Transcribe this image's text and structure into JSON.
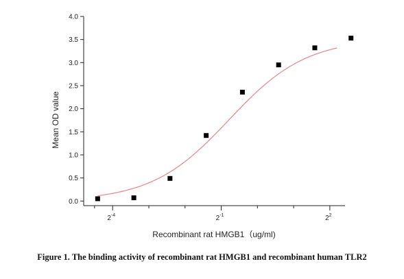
{
  "chart_data": {
    "type": "scatter",
    "title": "",
    "xlabel": "Recombinant rat HMGB1（ug/ml)",
    "ylabel": "Mean OD value",
    "x_scale": "log2",
    "xlim": [
      0.0359,
      5.35
    ],
    "ylim": [
      -0.1,
      4.0
    ],
    "y_ticks": [
      0.0,
      0.5,
      1.0,
      1.5,
      2.0,
      2.5,
      3.0,
      3.5,
      4.0
    ],
    "y_tick_labels": [
      "0.0",
      "0.5",
      "1.0",
      "1.5",
      "2.0",
      "2.5",
      "3.0",
      "3.5",
      "4.0"
    ],
    "x_ticks": [
      0.0625,
      0.5,
      4
    ],
    "x_tick_labels": [
      {
        "base": "2",
        "exp": "-4"
      },
      {
        "base": "2",
        "exp": "-1"
      },
      {
        "base": "2",
        "exp": "2"
      }
    ],
    "x_minor_ticks": [
      0.0442,
      0.125,
      0.25,
      1,
      2
    ],
    "grid": false,
    "marker_color": "#000000",
    "curve_color": "#e8848a",
    "series": [
      {
        "x": [
          0.0469,
          0.0938,
          0.1875,
          0.375,
          0.75,
          1.5,
          3,
          6
        ],
        "y": [
          0.05,
          0.07,
          0.49,
          1.42,
          2.36,
          2.95,
          3.32,
          3.53
        ]
      }
    ],
    "fit": {
      "model": "4PL",
      "bottom": 0.0,
      "top": 3.52,
      "ec50": 0.58,
      "hill": 1.35,
      "x_range": [
        0.0469,
        4.6
      ]
    }
  },
  "caption": "Figure 1. The binding activity of recombinant rat HMGB1 and recombinant human TLR2"
}
